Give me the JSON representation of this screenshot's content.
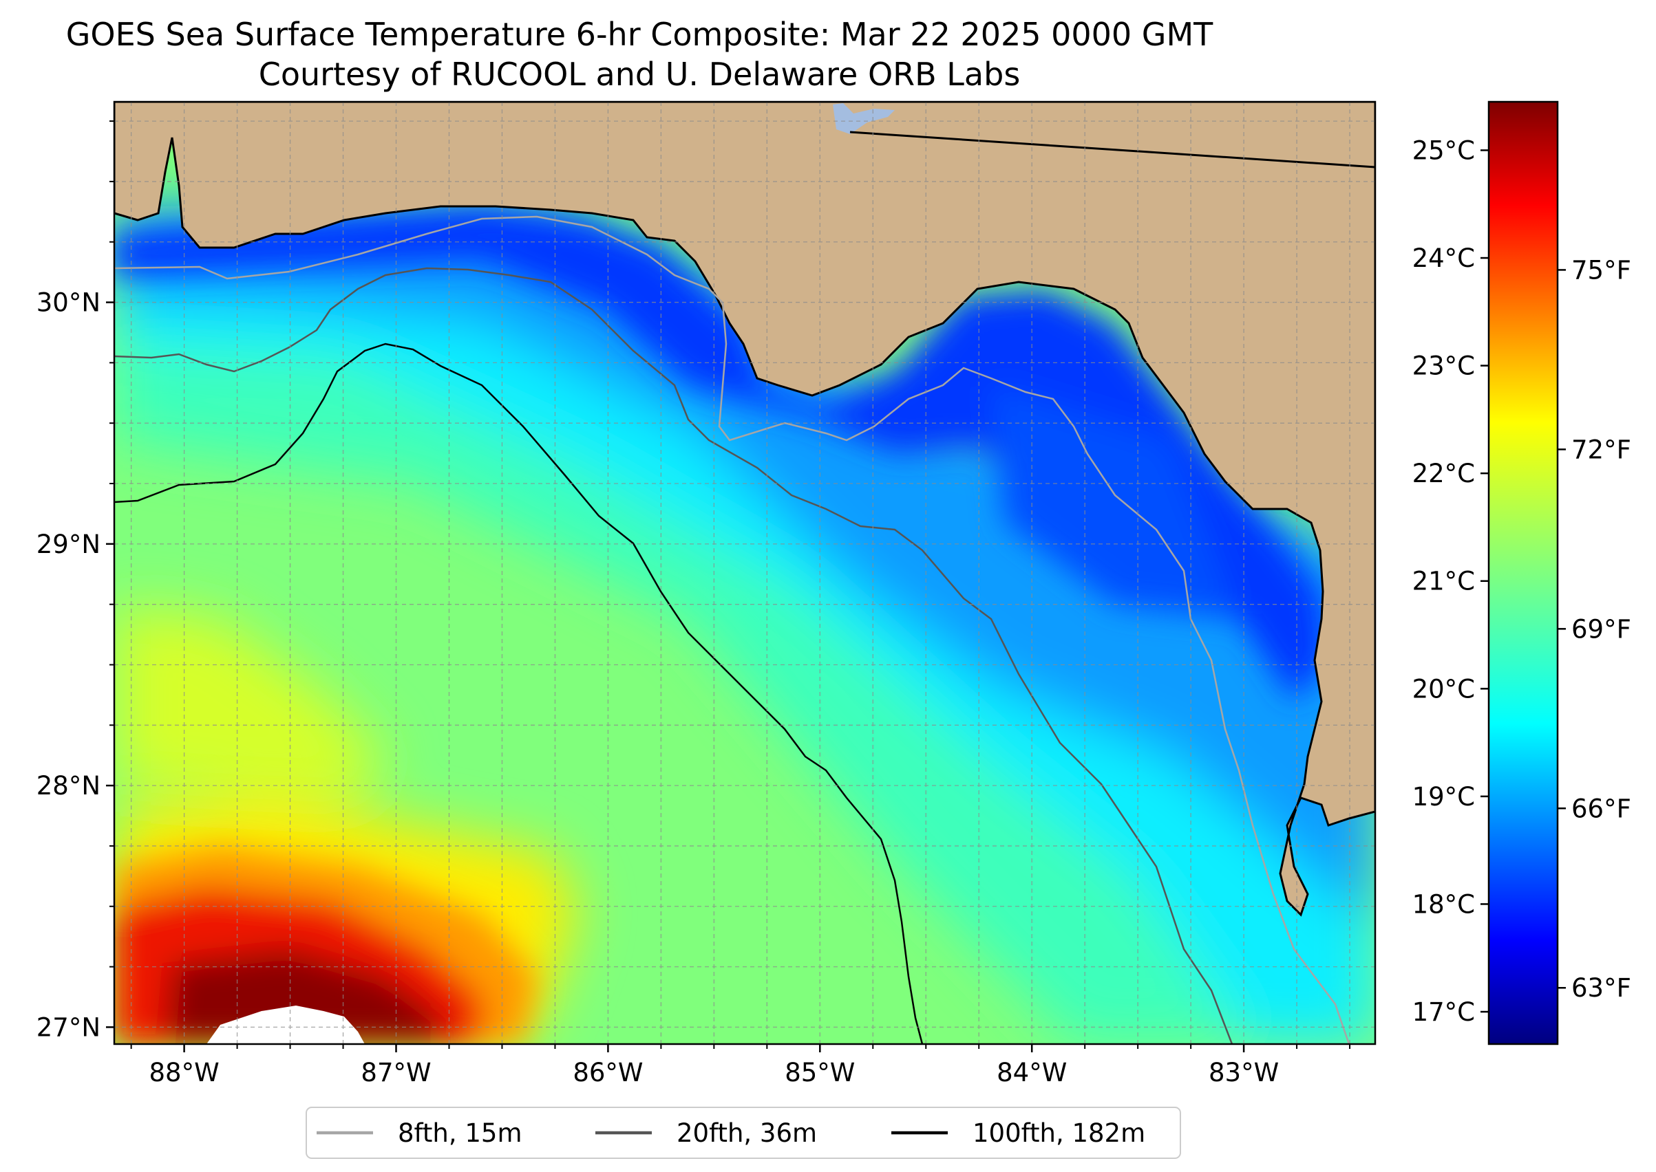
{
  "title": {
    "line1": "GOES Sea Surface Temperature 6-hr Composite: Mar 22 2025 0000 GMT",
    "line2": "Courtesy of RUCOOL and U. Delaware ORB Labs"
  },
  "chart_data": {
    "type": "heatmap",
    "subject": "Sea surface temperature, eastern Gulf of Mexico",
    "xlabel": "",
    "ylabel": "",
    "xlim": [
      -88.33,
      -82.38
    ],
    "ylim": [
      26.93,
      30.83
    ],
    "x_ticks": [
      {
        "value": -88,
        "label": "88°W"
      },
      {
        "value": -87,
        "label": "87°W"
      },
      {
        "value": -86,
        "label": "86°W"
      },
      {
        "value": -85,
        "label": "85°W"
      },
      {
        "value": -84,
        "label": "84°W"
      },
      {
        "value": -83,
        "label": "83°W"
      }
    ],
    "y_ticks": [
      {
        "value": 27,
        "label": "27°N"
      },
      {
        "value": 28,
        "label": "28°N"
      },
      {
        "value": 29,
        "label": "29°N"
      },
      {
        "value": 30,
        "label": "30°N"
      }
    ],
    "grid": true,
    "colorbar": {
      "colormap": "jet",
      "vmin_c": 16.7,
      "vmax_c": 25.45,
      "celsius_ticks": [
        {
          "value": 17,
          "label": "17°C"
        },
        {
          "value": 18,
          "label": "18°C"
        },
        {
          "value": 19,
          "label": "19°C"
        },
        {
          "value": 20,
          "label": "20°C"
        },
        {
          "value": 21,
          "label": "21°C"
        },
        {
          "value": 22,
          "label": "22°C"
        },
        {
          "value": 23,
          "label": "23°C"
        },
        {
          "value": 24,
          "label": "24°C"
        },
        {
          "value": 25,
          "label": "25°C"
        }
      ],
      "fahrenheit_ticks": [
        {
          "value": 63,
          "label": "63°F"
        },
        {
          "value": 66,
          "label": "66°F"
        },
        {
          "value": 69,
          "label": "69°F"
        },
        {
          "value": 72,
          "label": "72°F"
        },
        {
          "value": 75,
          "label": "75°F"
        }
      ]
    },
    "sst_regions_c": {
      "nearshore_shelf": 18.3,
      "mid_shelf": 19.6,
      "outer_shelf": 20.3,
      "open_gulf": 21.0,
      "southwest_warm_front": 22.2,
      "loop_current_core": 25.0
    },
    "legend": {
      "placement": "bottom-center",
      "entries": [
        {
          "label": "8fth, 15m",
          "color": "#a6a6a6"
        },
        {
          "label": "20fth, 36m",
          "color": "#555555"
        },
        {
          "label": "100fth, 182m",
          "color": "#000000"
        }
      ]
    }
  },
  "colors": {
    "land": "#d0b28b",
    "lake": "#a4bde0",
    "isobath_8fth": "#a6a6a6",
    "isobath_20fth": "#555555",
    "isobath_100fth": "#000000"
  }
}
